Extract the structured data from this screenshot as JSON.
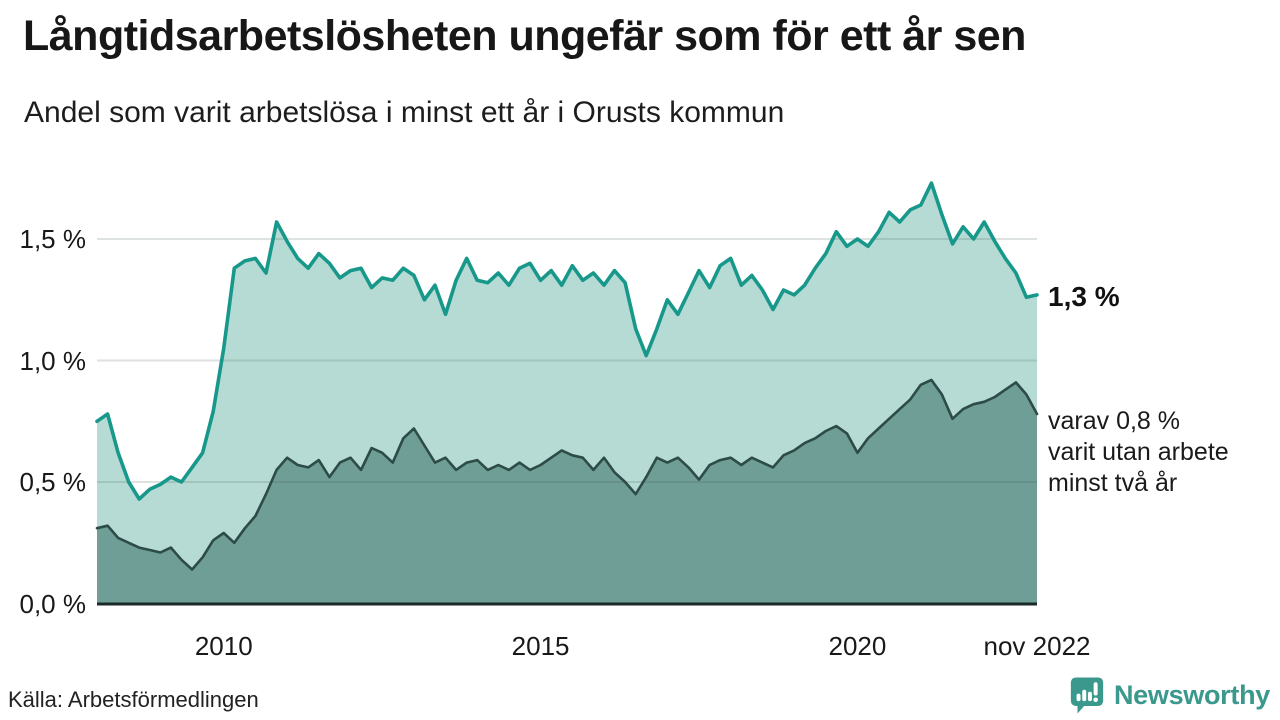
{
  "header": {
    "title": "Långtidsarbetslösheten ungefär som för ett år sen",
    "subtitle": "Andel som varit arbetslösa i minst ett år i Orusts kommun"
  },
  "annotations": {
    "end_value": "1,3 %",
    "note_line1": "varav 0,8 %",
    "note_line2": "varit utan arbete",
    "note_line3": "minst två år"
  },
  "footer": {
    "source": "Källa: Arbetsförmedlingen",
    "brand": "Newsworthy"
  },
  "colors": {
    "accent_teal": "#18988b",
    "fill_light": "#b6dbd4",
    "fill_dark": "#6f9e97",
    "line_dark": "#2d4b47",
    "axis_line": "#1c2a27",
    "grid": "#e2e6e5",
    "brand_teal": "#3a988c",
    "text": "#1a1a1a"
  },
  "chart_data": {
    "type": "area",
    "title": "Långtidsarbetslösheten ungefär som för ett år sen",
    "subtitle": "Andel som varit arbetslösa i minst ett år i Orusts kommun",
    "x_start": "2008-01",
    "x_end": "2022-11",
    "x_step_months": 2,
    "xlim": [
      2008.0,
      2022.8333
    ],
    "ylim": [
      0,
      1.75
    ],
    "grid": true,
    "legend": "none",
    "y_ticks": [
      0,
      0.5,
      1.0,
      1.5
    ],
    "y_tick_labels": [
      "0,0 %",
      "0,5 %",
      "1,0 %",
      "1,5 %"
    ],
    "x_ticks": [
      2010,
      2015,
      2020,
      2022.8333
    ],
    "x_tick_labels": [
      "2010",
      "2015",
      "2020",
      "nov 2022"
    ],
    "series": [
      {
        "name": "Andel som varit arbetslösa i minst ett år",
        "line_color": "#18988b",
        "fill_color": "#b6dbd4",
        "end_label": "1,3 %",
        "values": [
          0.75,
          0.78,
          0.62,
          0.5,
          0.43,
          0.47,
          0.49,
          0.52,
          0.5,
          0.56,
          0.62,
          0.79,
          1.05,
          1.38,
          1.41,
          1.42,
          1.36,
          1.57,
          1.49,
          1.42,
          1.38,
          1.44,
          1.4,
          1.34,
          1.37,
          1.38,
          1.3,
          1.34,
          1.33,
          1.38,
          1.35,
          1.25,
          1.31,
          1.19,
          1.33,
          1.42,
          1.33,
          1.32,
          1.36,
          1.31,
          1.38,
          1.4,
          1.33,
          1.37,
          1.31,
          1.39,
          1.33,
          1.36,
          1.31,
          1.37,
          1.32,
          1.13,
          1.02,
          1.13,
          1.25,
          1.19,
          1.28,
          1.37,
          1.3,
          1.39,
          1.42,
          1.31,
          1.35,
          1.29,
          1.21,
          1.29,
          1.27,
          1.31,
          1.38,
          1.44,
          1.53,
          1.47,
          1.5,
          1.47,
          1.53,
          1.61,
          1.57,
          1.62,
          1.64,
          1.73,
          1.6,
          1.48,
          1.55,
          1.5,
          1.57,
          1.49,
          1.42,
          1.36,
          1.26,
          1.27
        ]
      },
      {
        "name": "varav varit utan arbete minst två år",
        "line_color": "#2d4b47",
        "fill_color": "#6f9e97",
        "end_label": "0,8 %",
        "values": [
          0.31,
          0.32,
          0.27,
          0.25,
          0.23,
          0.22,
          0.21,
          0.23,
          0.18,
          0.14,
          0.19,
          0.26,
          0.29,
          0.25,
          0.31,
          0.36,
          0.45,
          0.55,
          0.6,
          0.57,
          0.56,
          0.59,
          0.52,
          0.58,
          0.6,
          0.55,
          0.64,
          0.62,
          0.58,
          0.68,
          0.72,
          0.65,
          0.58,
          0.6,
          0.55,
          0.58,
          0.59,
          0.55,
          0.57,
          0.55,
          0.58,
          0.55,
          0.57,
          0.6,
          0.63,
          0.61,
          0.6,
          0.55,
          0.6,
          0.54,
          0.5,
          0.45,
          0.52,
          0.6,
          0.58,
          0.6,
          0.56,
          0.51,
          0.57,
          0.59,
          0.6,
          0.57,
          0.6,
          0.58,
          0.56,
          0.61,
          0.63,
          0.66,
          0.68,
          0.71,
          0.73,
          0.7,
          0.62,
          0.68,
          0.72,
          0.76,
          0.8,
          0.84,
          0.9,
          0.92,
          0.86,
          0.76,
          0.8,
          0.82,
          0.83,
          0.85,
          0.88,
          0.91,
          0.86,
          0.78
        ]
      }
    ],
    "annotations": [
      {
        "text": "1,3 %",
        "bold": true
      },
      {
        "text": "varav 0,8 % varit utan arbete minst två år"
      }
    ]
  }
}
